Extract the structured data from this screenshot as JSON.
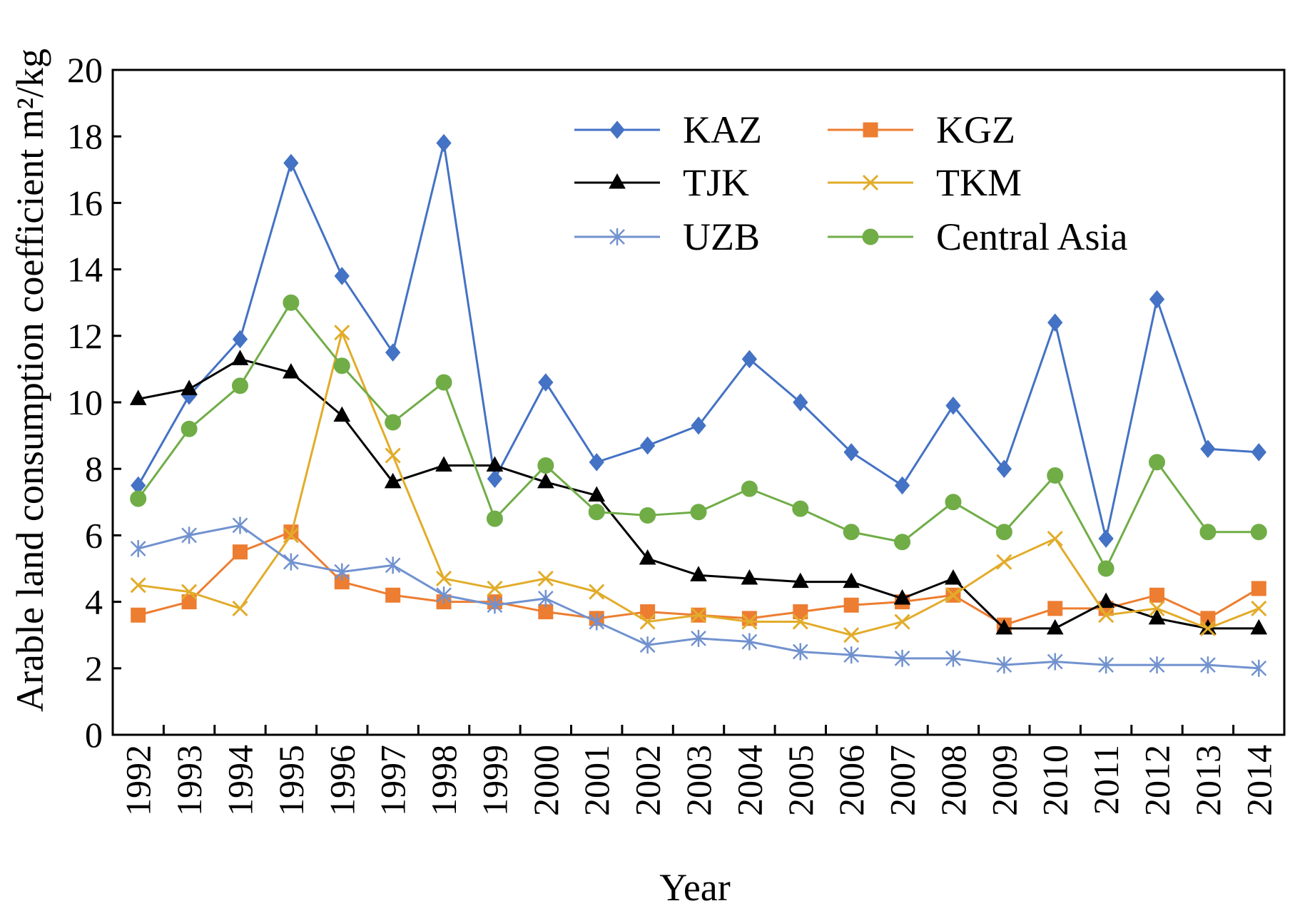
{
  "chart_data": {
    "type": "line",
    "xlabel": "Year",
    "ylabel": "Arable land consumption coefficient m²/kg",
    "ylim": [
      0,
      20
    ],
    "yticks": [
      0,
      2,
      4,
      6,
      8,
      10,
      12,
      14,
      16,
      18,
      20
    ],
    "grid": false,
    "legend_position": "top-right",
    "categories": [
      "1992",
      "1993",
      "1994",
      "1995",
      "1996",
      "1997",
      "1998",
      "1999",
      "2000",
      "2001",
      "2002",
      "2003",
      "2004",
      "2005",
      "2006",
      "2007",
      "2008",
      "2009",
      "2010",
      "2011",
      "2012",
      "2013",
      "2014"
    ],
    "series": [
      {
        "name": "KAZ",
        "color": "#4472C4",
        "marker": "diamond",
        "values": [
          7.5,
          10.2,
          11.9,
          17.2,
          13.8,
          11.5,
          17.8,
          7.7,
          10.6,
          8.2,
          8.7,
          9.3,
          11.3,
          10.0,
          8.5,
          7.5,
          9.9,
          8.0,
          12.4,
          5.9,
          13.1,
          8.6,
          8.5
        ]
      },
      {
        "name": "KGZ",
        "color": "#ED7D31",
        "marker": "square",
        "values": [
          3.6,
          4.0,
          5.5,
          6.1,
          4.6,
          4.2,
          4.0,
          4.0,
          3.7,
          3.5,
          3.7,
          3.6,
          3.5,
          3.7,
          3.9,
          4.0,
          4.2,
          3.3,
          3.8,
          3.8,
          4.2,
          3.5,
          4.4
        ]
      },
      {
        "name": "TJK",
        "color": "#000000",
        "marker": "triangle",
        "values": [
          10.1,
          10.4,
          11.3,
          10.9,
          9.6,
          7.6,
          8.1,
          8.1,
          7.6,
          7.2,
          5.3,
          4.8,
          4.7,
          4.6,
          4.6,
          4.1,
          4.7,
          3.2,
          3.2,
          4.0,
          3.5,
          3.2,
          3.2
        ]
      },
      {
        "name": "TKM",
        "color": "#E2AC2A",
        "marker": "x",
        "values": [
          4.5,
          4.3,
          3.8,
          6.0,
          12.1,
          8.4,
          4.7,
          4.4,
          4.7,
          4.3,
          3.4,
          3.6,
          3.4,
          3.4,
          3.0,
          3.4,
          4.2,
          5.2,
          5.9,
          3.6,
          3.8,
          3.2,
          3.8
        ]
      },
      {
        "name": "UZB",
        "color": "#7192CF",
        "marker": "asterisk",
        "values": [
          5.6,
          6.0,
          6.3,
          5.2,
          4.9,
          5.1,
          4.2,
          3.9,
          4.1,
          3.4,
          2.7,
          2.9,
          2.8,
          2.5,
          2.4,
          2.3,
          2.3,
          2.1,
          2.2,
          2.1,
          2.1,
          2.1,
          2.0
        ]
      },
      {
        "name": "Central Asia",
        "color": "#70AD47",
        "marker": "circle",
        "values": [
          7.1,
          9.2,
          10.5,
          13.0,
          11.1,
          9.4,
          10.6,
          6.5,
          8.1,
          6.7,
          6.6,
          6.7,
          7.4,
          6.8,
          6.1,
          5.8,
          7.0,
          6.1,
          7.8,
          5.0,
          8.2,
          6.1,
          6.1
        ]
      }
    ]
  }
}
